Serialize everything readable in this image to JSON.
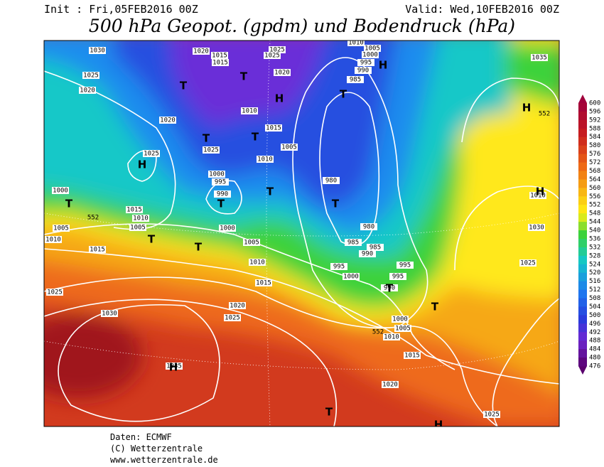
{
  "header": {
    "init": "Init : Fri,05FEB2016 00Z",
    "valid": "Valid: Wed,10FEB2016 00Z",
    "title": "500 hPa Geopot. (gpdm) und Bodendruck (hPa)"
  },
  "colorbar": {
    "levels": [
      600,
      596,
      592,
      588,
      584,
      580,
      576,
      572,
      568,
      564,
      560,
      556,
      552,
      548,
      544,
      540,
      536,
      532,
      528,
      524,
      520,
      516,
      512,
      508,
      504,
      500,
      496,
      492,
      488,
      484,
      480,
      476
    ]
  },
  "map": {
    "isobar_labels": [
      "1030",
      "1020",
      "1015",
      "1025",
      "1015",
      "1025",
      "1020",
      "1025",
      "1020",
      "1020",
      "1010",
      "1015",
      "1005",
      "1025",
      "1010",
      "1025",
      "1000",
      "995",
      "990",
      "1000",
      "980",
      "1015",
      "1010",
      "1005",
      "1005",
      "1010",
      "1015",
      "1000",
      "1005",
      "1010",
      "1015",
      "1020",
      "1025",
      "1025",
      "1030",
      "1035",
      "985",
      "990",
      "985",
      "995",
      "1000",
      "995",
      "995",
      "990",
      "980",
      "1000",
      "1005",
      "1010",
      "1015",
      "1020",
      "1025",
      "1030",
      "1035",
      "1010",
      "1025",
      "1000",
      "995",
      "990",
      "985",
      "1005",
      "1010"
    ],
    "geopot_labels": [
      "552",
      "552",
      "552"
    ],
    "centers": [
      "T",
      "T",
      "T",
      "T",
      "T",
      "T",
      "T",
      "T",
      "T",
      "T",
      "T",
      "T",
      "T",
      "T",
      "H",
      "H",
      "H",
      "H",
      "H",
      "H",
      "H"
    ]
  },
  "footer": {
    "source": "Daten: ECMWF",
    "copyright": "(C) Wetterzentrale",
    "url": "www.wetterzentrale.de"
  }
}
